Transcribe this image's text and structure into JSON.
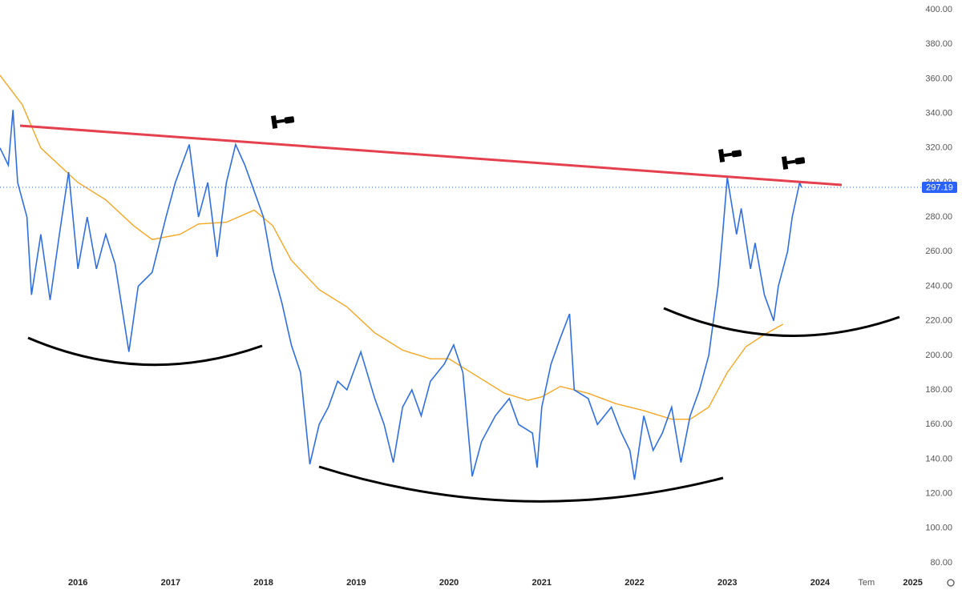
{
  "chart_data": {
    "type": "line",
    "xlim": [
      2015.16,
      2025.53
    ],
    "ylim": [
      74.4,
      405.6
    ],
    "xticks": [
      2016,
      2017,
      2018,
      2019,
      2020,
      2021,
      2022,
      2023,
      2024,
      {
        "value": 2024.5,
        "label": "Tem"
      },
      2025
    ],
    "yticks": [
      {
        "value": 80,
        "label": "80.00"
      },
      {
        "value": 100,
        "label": "100.00"
      },
      {
        "value": 120,
        "label": "120.00"
      },
      {
        "value": 140,
        "label": "140.00"
      },
      {
        "value": 160,
        "label": "160.00"
      },
      {
        "value": 180,
        "label": "180.00"
      },
      {
        "value": 200,
        "label": "200.00"
      },
      {
        "value": 220,
        "label": "220.00"
      },
      {
        "value": 240,
        "label": "240.00"
      },
      {
        "value": 260,
        "label": "260.00"
      },
      {
        "value": 280,
        "label": "280.00"
      },
      {
        "value": 300,
        "label": "300.00"
      },
      {
        "value": 320,
        "label": "320.00"
      },
      {
        "value": 340,
        "label": "340.00"
      },
      {
        "value": 360,
        "label": "360.00"
      },
      {
        "value": 380,
        "label": "380.00"
      },
      {
        "value": 400,
        "label": "400.00"
      }
    ],
    "grid": false,
    "last_value": 297.19,
    "series": [
      {
        "color": "#2f6fe0",
        "x": [
          2015.16,
          2015.25,
          2015.3,
          2015.35,
          2015.45,
          2015.5,
          2015.6,
          2015.7,
          2015.8,
          2015.9,
          2016.0,
          2016.1,
          2016.2,
          2016.3,
          2016.4,
          2016.55,
          2016.65,
          2016.8,
          2016.95,
          2017.05,
          2017.2,
          2017.3,
          2017.4,
          2017.5,
          2017.6,
          2017.7,
          2017.8,
          2017.9,
          2018.0,
          2018.1,
          2018.2,
          2018.3,
          2018.4,
          2018.5,
          2018.6,
          2018.7,
          2018.8,
          2018.9,
          2019.05,
          2019.2,
          2019.3,
          2019.4,
          2019.5,
          2019.6,
          2019.7,
          2019.8,
          2019.95,
          2020.05,
          2020.15,
          2020.25,
          2020.35,
          2020.5,
          2020.65,
          2020.75,
          2020.9,
          2020.95,
          2021.0,
          2021.1,
          2021.2,
          2021.3,
          2021.35,
          2021.5,
          2021.6,
          2021.75,
          2021.85,
          2021.95,
          2022.0,
          2022.1,
          2022.2,
          2022.3,
          2022.4,
          2022.5,
          2022.6,
          2022.7,
          2022.8,
          2022.9,
          2022.95,
          2023.0,
          2023.1,
          2023.15,
          2023.25,
          2023.3,
          2023.4,
          2023.5,
          2023.55,
          2023.65,
          2023.7,
          2023.78,
          2023.8
        ],
        "values": [
          320,
          310,
          342,
          300,
          280,
          235,
          270,
          232,
          270,
          306,
          250,
          280,
          250,
          270,
          253,
          202,
          240,
          248,
          280,
          300,
          322,
          280,
          300,
          257,
          300,
          322,
          310,
          295,
          280,
          250,
          230,
          206,
          190,
          137,
          160,
          170,
          185,
          180,
          202,
          175,
          160,
          138,
          170,
          180,
          165,
          185,
          195,
          206,
          190,
          130,
          150,
          165,
          175,
          160,
          155,
          135,
          170,
          195,
          210,
          224,
          180,
          175,
          160,
          170,
          156,
          145,
          128,
          165,
          145,
          155,
          170,
          138,
          165,
          180,
          200,
          240,
          270,
          303,
          270,
          285,
          250,
          265,
          235,
          220,
          240,
          260,
          280,
          300,
          297.19
        ]
      },
      {
        "color": "#f5a623",
        "x": [
          2015.16,
          2015.4,
          2015.6,
          2016.0,
          2016.3,
          2016.6,
          2016.8,
          2017.1,
          2017.3,
          2017.6,
          2017.9,
          2018.1,
          2018.3,
          2018.6,
          2018.9,
          2019.2,
          2019.5,
          2019.8,
          2020.0,
          2020.3,
          2020.6,
          2020.85,
          2021.0,
          2021.2,
          2021.5,
          2021.8,
          2022.1,
          2022.4,
          2022.6,
          2022.8,
          2023.0,
          2023.2,
          2023.4,
          2023.6
        ],
        "values": [
          362,
          345,
          320,
          300,
          290,
          275,
          267,
          270,
          276,
          277,
          284,
          275,
          255,
          238,
          228,
          213,
          203,
          198,
          198,
          188,
          178,
          174,
          176,
          182,
          178,
          172,
          168,
          163,
          163,
          170,
          190,
          205,
          212,
          218
        ]
      }
    ]
  }
}
